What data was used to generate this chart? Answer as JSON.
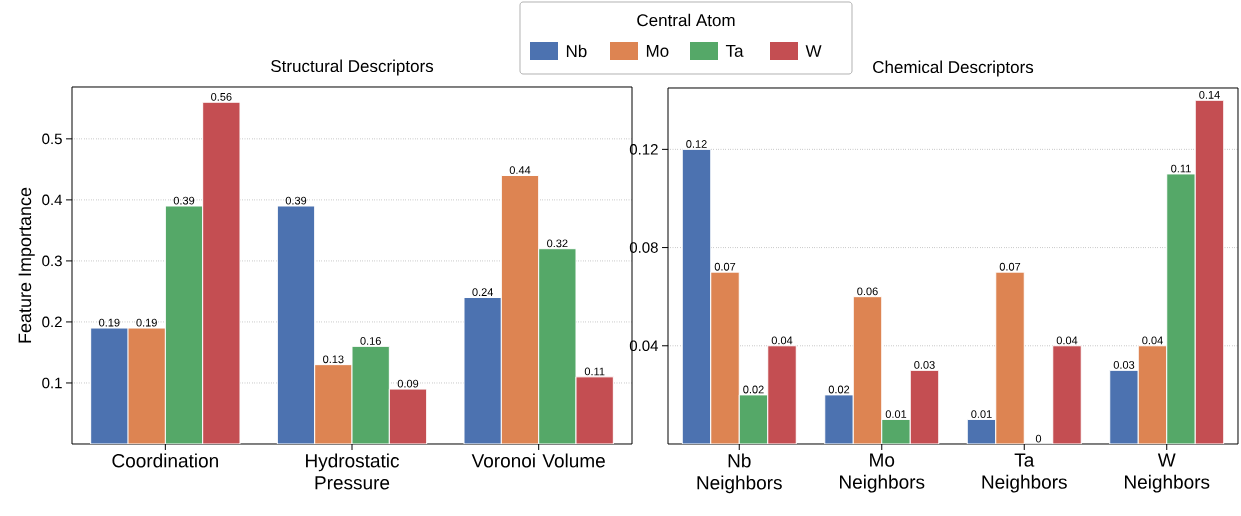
{
  "chart_data": [
    {
      "type": "bar",
      "title": "Structural Descriptors",
      "ylabel": "Feature Importance",
      "legend": "top",
      "legend_title": "Central Atom",
      "categories": [
        "Coordination",
        "Hydrostatic Pressure",
        "Voronoi Volume"
      ],
      "series": [
        {
          "name": "Nb",
          "color": "#4c72b0",
          "values": [
            0.19,
            0.39,
            0.24
          ]
        },
        {
          "name": "Mo",
          "color": "#dd8452",
          "values": [
            0.19,
            0.13,
            0.44
          ]
        },
        {
          "name": "Ta",
          "color": "#55a868",
          "values": [
            0.39,
            0.16,
            0.32
          ]
        },
        {
          "name": "W",
          "color": "#c44e52",
          "values": [
            0.56,
            0.09,
            0.11
          ]
        }
      ],
      "ylim": [
        0,
        0.585
      ],
      "yticks": [
        0.1,
        0.2,
        0.3,
        0.4,
        0.5
      ],
      "grid": "y",
      "data_labels": true
    },
    {
      "type": "bar",
      "title": "Chemical Descriptors",
      "categories": [
        "Nb Neighbors",
        "Mo Neighbors",
        "Ta Neighbors",
        "W Neighbors"
      ],
      "series": [
        {
          "color": "#4c72b0",
          "values": [
            0.12,
            0.02,
            0.01,
            0.03
          ]
        },
        {
          "color": "#dd8452",
          "values": [
            0.07,
            0.06,
            0.07,
            0.04
          ]
        },
        {
          "color": "#55a868",
          "values": [
            0.02,
            0.01,
            0,
            0.11
          ]
        },
        {
          "color": "#c44e52",
          "values": [
            0.04,
            0.03,
            0.04,
            0.14
          ]
        }
      ],
      "ylim": [
        0,
        0.145
      ],
      "yticks": [
        0.04,
        0.08,
        0.12
      ],
      "grid": "y",
      "data_labels": true
    }
  ]
}
